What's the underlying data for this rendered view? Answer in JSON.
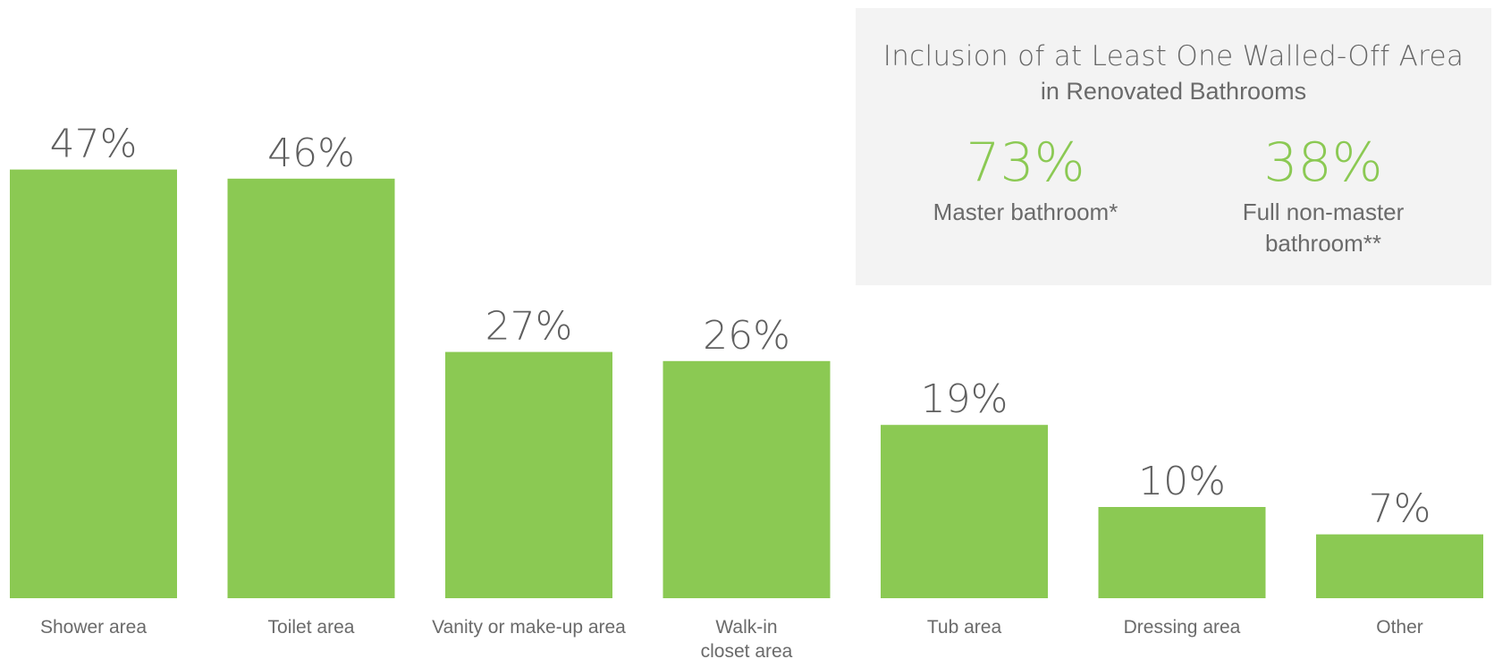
{
  "chart_data": {
    "type": "bar",
    "categories": [
      "Shower area",
      "Toilet area",
      "Vanity or make-up area",
      "Walk-in closet area",
      "Tub area",
      "Dressing area",
      "Other"
    ],
    "values": [
      47,
      46,
      27,
      26,
      19,
      10,
      7
    ],
    "value_labels": [
      "47%",
      "46%",
      "27%",
      "26%",
      "19%",
      "10%",
      "7%"
    ],
    "unit": "%",
    "ylim": [
      0,
      50
    ],
    "grid": false,
    "bar_color": "#8bc953"
  },
  "panel": {
    "title": "Inclusion of at Least One Walled-Off Area",
    "subtitle": "in Renovated Bathrooms",
    "stats": [
      {
        "value": "73%",
        "label": "Master bathroom*"
      },
      {
        "value": "38%",
        "label": "Full non-master bathroom**"
      }
    ],
    "value_color": "#8bc953"
  }
}
